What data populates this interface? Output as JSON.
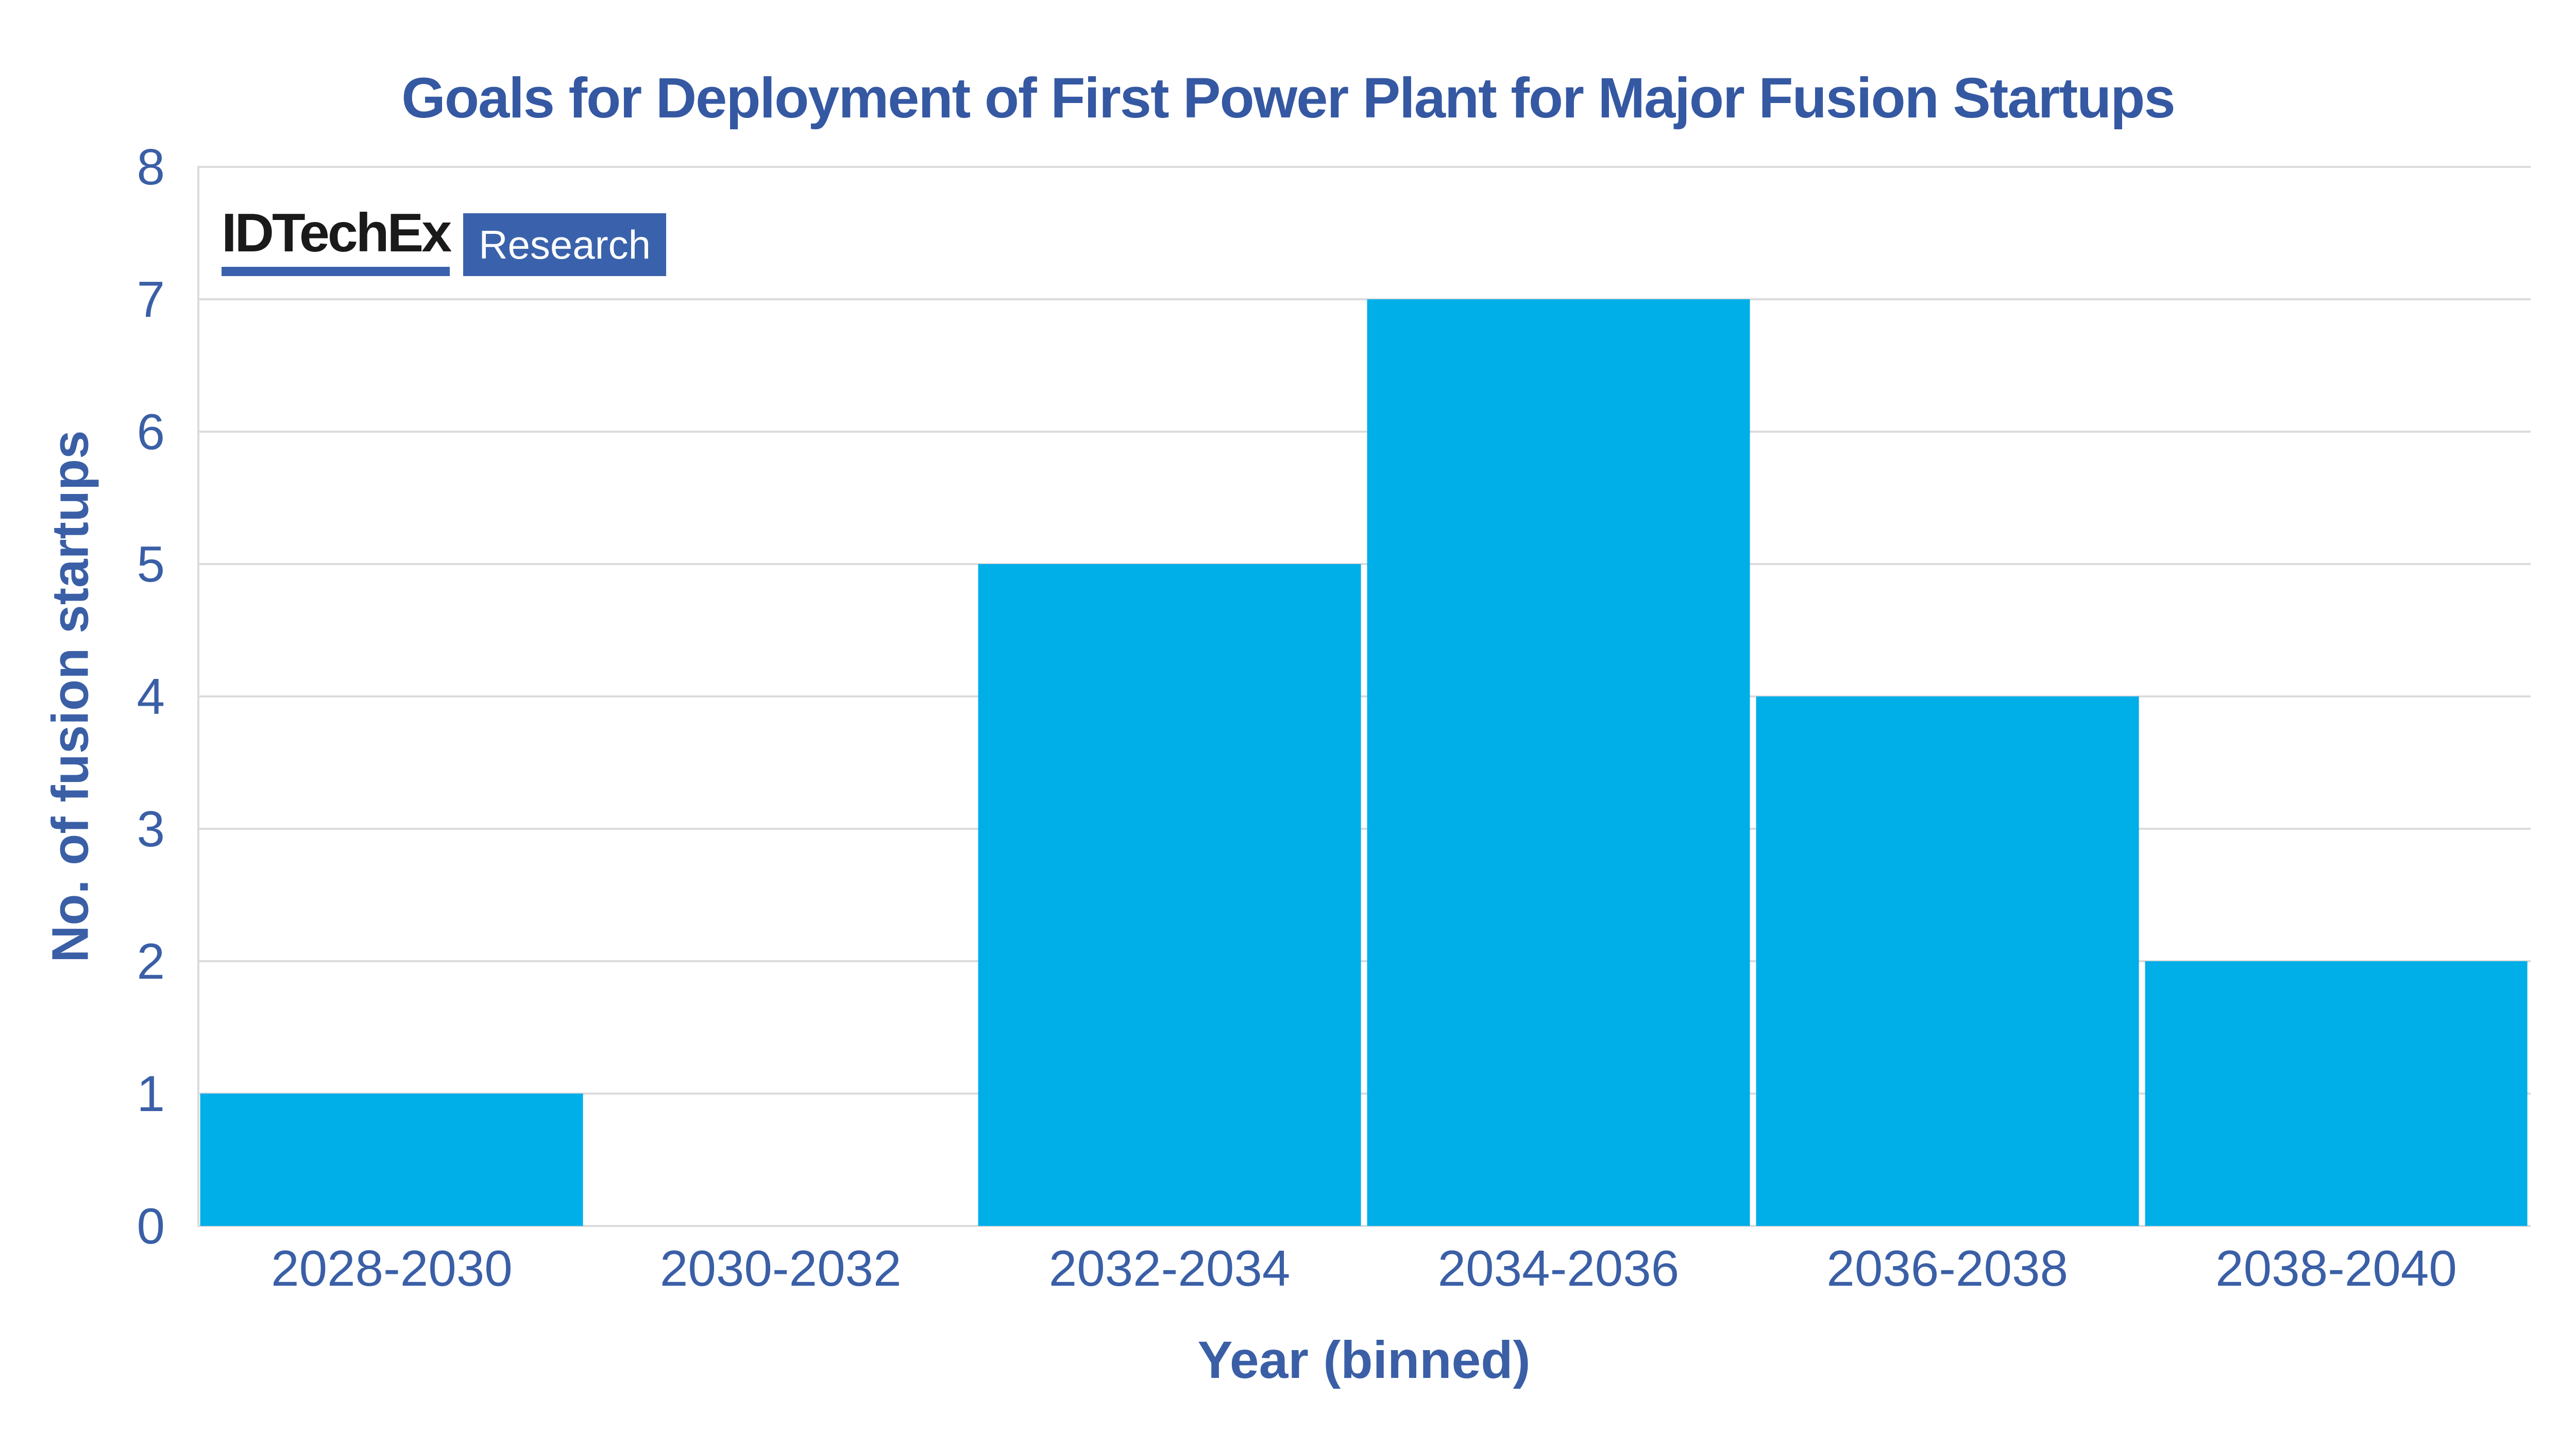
{
  "title": "Goals for Deployment of First Power Plant for Major Fusion Startups",
  "logo": {
    "brand": "IDTechEx",
    "suffix": "Research"
  },
  "chart_data": {
    "type": "bar",
    "title": "Goals for Deployment of First Power Plant for Major Fusion Startups",
    "categories": [
      "2028-2030",
      "2030-2032",
      "2032-2034",
      "2034-2036",
      "2036-2038",
      "2038-2040"
    ],
    "values": [
      1,
      0,
      5,
      7,
      4,
      2
    ],
    "xlabel": "Year (binned)",
    "ylabel": "No. of fusion startups",
    "ylim": [
      0,
      8
    ],
    "yticks": [
      0,
      1,
      2,
      3,
      4,
      5,
      6,
      7,
      8
    ],
    "grid": "horizontal",
    "legend": "none"
  },
  "colors": {
    "bar": "#00AEE8",
    "textblue": "#3A5FA6",
    "titleblue": "#3558A2",
    "grid": "#DBDBDB",
    "logobg": "#3A62AC",
    "logotext": "#1A1A1A",
    "logofg": "#FFFFFF"
  }
}
